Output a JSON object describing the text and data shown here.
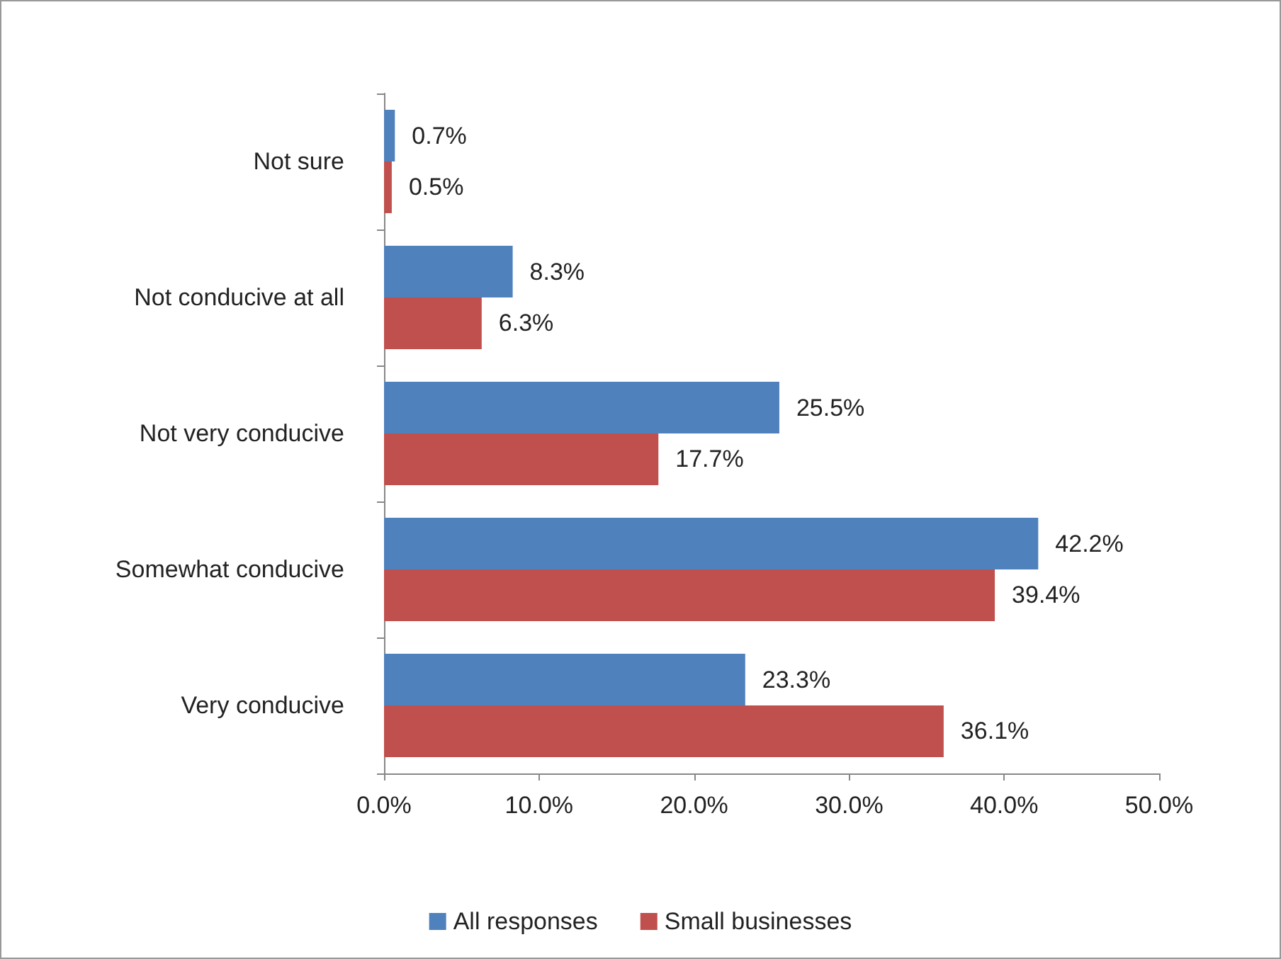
{
  "chart_data": {
    "type": "bar",
    "orientation": "horizontal",
    "categories": [
      "Not sure",
      "Not conducive at all",
      "Not very conducive",
      "Somewhat conducive",
      "Very conducive"
    ],
    "series": [
      {
        "name": "All responses",
        "color": "#4f81bd",
        "values": [
          0.7,
          8.3,
          25.5,
          42.2,
          23.3
        ],
        "value_labels": [
          "0.7%",
          "8.3%",
          "25.5%",
          "42.2%",
          "23.3%"
        ]
      },
      {
        "name": "Small businesses",
        "color": "#c0504d",
        "values": [
          0.5,
          6.3,
          17.7,
          39.4,
          36.1
        ],
        "value_labels": [
          "0.5%",
          "6.3%",
          "17.7%",
          "39.4%",
          "36.1%"
        ]
      }
    ],
    "xlim": [
      0,
      50
    ],
    "xticks": [
      {
        "value": 0,
        "label": "0.0%"
      },
      {
        "value": 10,
        "label": "10.0%"
      },
      {
        "value": 20,
        "label": "20.0%"
      },
      {
        "value": 30,
        "label": "30.0%"
      },
      {
        "value": 40,
        "label": "40.0%"
      },
      {
        "value": 50,
        "label": "50.0%"
      }
    ],
    "grid": false,
    "legend": "bottom"
  }
}
